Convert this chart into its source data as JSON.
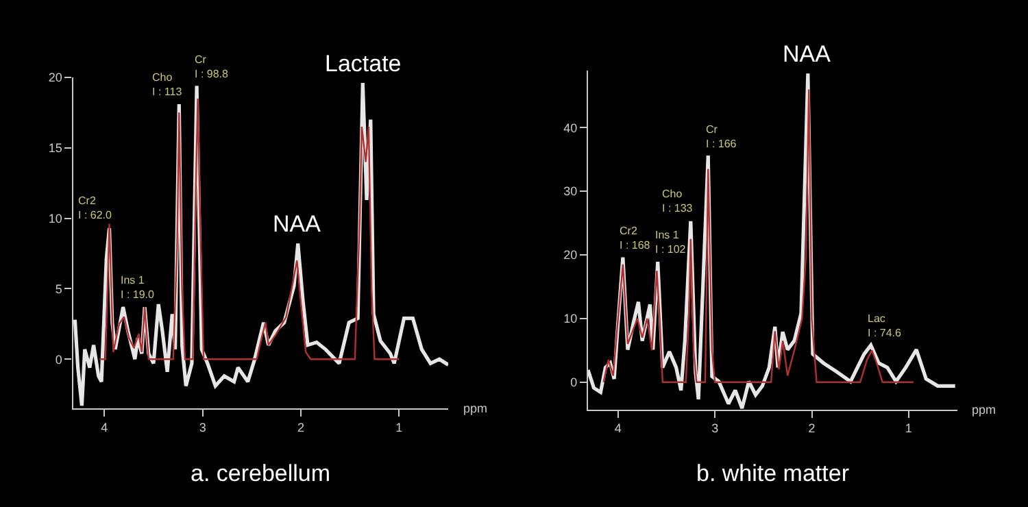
{
  "chart_data": [
    {
      "type": "line",
      "xlabel": "ppm",
      "xlim": [
        4.32,
        0.5
      ],
      "ylim": [
        -3.5,
        20
      ],
      "xticks": [
        4,
        3,
        2,
        1
      ],
      "yticks": [
        0,
        5,
        10,
        15,
        20
      ],
      "grid": false,
      "marker": "none",
      "line_style": "solid",
      "series": [
        {
          "color": "#e6e6e6",
          "x": [
            4.3,
            4.27,
            4.23,
            4.2,
            4.15,
            4.11,
            4.06,
            4.03,
            3.98,
            3.95,
            3.92,
            3.89,
            3.81,
            3.76,
            3.69,
            3.66,
            3.62,
            3.59,
            3.55,
            3.5,
            3.45,
            3.41,
            3.36,
            3.31,
            3.28,
            3.24,
            3.21,
            3.17,
            3.11,
            3.06,
            3.01,
            2.95,
            2.87,
            2.78,
            2.68,
            2.64,
            2.54,
            2.47,
            2.38,
            2.33,
            2.26,
            2.17,
            2.07,
            2.03,
            1.98,
            1.93,
            1.84,
            1.75,
            1.61,
            1.51,
            1.42,
            1.37,
            1.33,
            1.29,
            1.26,
            1.19,
            1.09,
            1.05,
            0.95,
            0.86,
            0.77,
            0.68,
            0.59,
            0.5
          ],
          "values": [
            2.8,
            -0.6,
            -3.3,
            0.7,
            -0.6,
            1.0,
            -1.2,
            -1.6,
            7.1,
            9.3,
            2.6,
            0.7,
            3.7,
            2.0,
            0,
            1.5,
            0.4,
            3.7,
            0.4,
            -0.3,
            3.9,
            2.0,
            -0.9,
            3.2,
            0.7,
            18.1,
            1.0,
            -1.9,
            -0.3,
            19.4,
            0.7,
            -0.3,
            -1.9,
            -1.2,
            -1.6,
            -0.6,
            -1.6,
            0,
            2.6,
            1.0,
            2.0,
            2.6,
            5.2,
            8.2,
            4.2,
            1.0,
            1.2,
            0.7,
            -0.3,
            2.6,
            2.9,
            19.6,
            11.3,
            17.0,
            3.2,
            1.3,
            0.4,
            -0.3,
            2.9,
            2.9,
            0.7,
            -0.3,
            0,
            -0.4
          ]
        },
        {
          "color": "#b03030",
          "x": [
            4.05,
            3.99,
            3.95,
            3.91,
            3.85,
            3.8,
            3.75,
            3.7,
            3.65,
            3.62,
            3.59,
            3.55,
            3.3,
            3.26,
            3.24,
            3.21,
            3.18,
            3.1,
            3.07,
            3.05,
            3.02,
            2.99,
            2.45,
            2.4,
            2.36,
            2.33,
            2.25,
            2.15,
            2.08,
            2.04,
            2.0,
            1.95,
            1.9,
            1.45,
            1.4,
            1.38,
            1.34,
            1.31,
            1.28,
            1.25,
            1.0
          ],
          "values": [
            0,
            0,
            9.6,
            0.5,
            2.5,
            3.0,
            1.5,
            0.8,
            1.8,
            0.5,
            3.7,
            0,
            0,
            8,
            17.5,
            5,
            0,
            0,
            12,
            18.5,
            8,
            0,
            0,
            1.5,
            2.6,
            1,
            1.8,
            3,
            5.5,
            7,
            4,
            0.5,
            0,
            0,
            10,
            16.5,
            14,
            16.5,
            5,
            0,
            0
          ]
        }
      ],
      "annotations": [
        {
          "text": "Cr2\nI : 62.0",
          "x": 3.95,
          "y": 9.3
        },
        {
          "text": "Ins 1\nI : 19.0",
          "x": 3.81,
          "y": 3.7
        },
        {
          "text": "Cho\nI : 113",
          "x": 3.24,
          "y": 18.1
        },
        {
          "text": "Cr\nI : 98.8",
          "x": 3.06,
          "y": 19.4
        },
        {
          "text": "NAA",
          "x": 2.03,
          "y": 8.2
        },
        {
          "text": "Lactate",
          "x": 1.37,
          "y": 19.6
        },
        "a. cerebellum"
      ]
    },
    {
      "type": "line",
      "xlabel": "ppm",
      "xlim": [
        4.31,
        0.5
      ],
      "ylim": [
        -4.3,
        49
      ],
      "xticks": [
        4,
        3,
        2,
        1
      ],
      "yticks": [
        0,
        10,
        20,
        30,
        40
      ],
      "grid": false,
      "marker": "none",
      "line_style": "solid",
      "series": [
        {
          "color": "#e6e6e6",
          "x": [
            4.31,
            4.25,
            4.18,
            4.13,
            4.08,
            4.04,
            4.0,
            3.95,
            3.9,
            3.84,
            3.79,
            3.75,
            3.71,
            3.67,
            3.64,
            3.59,
            3.54,
            3.47,
            3.4,
            3.35,
            3.31,
            3.25,
            3.2,
            3.17,
            3.07,
            3.03,
            2.96,
            2.86,
            2.79,
            2.72,
            2.65,
            2.58,
            2.51,
            2.44,
            2.38,
            2.35,
            2.3,
            2.25,
            2.18,
            2.11,
            2.04,
            1.99,
            1.88,
            1.74,
            1.6,
            1.46,
            1.39,
            1.31,
            1.22,
            1.13,
            1.03,
            0.92,
            0.82,
            0.7,
            0.52
          ],
          "values": [
            1.9,
            -0.9,
            -1.6,
            2.3,
            3.0,
            0.5,
            9.4,
            19.6,
            5.1,
            9.4,
            12.6,
            6.5,
            9.4,
            12.2,
            5.1,
            18.9,
            2.3,
            4.8,
            2.3,
            -1.3,
            6.5,
            25.3,
            1.6,
            -2.7,
            35.6,
            0.9,
            0.1,
            -3.4,
            -1.3,
            -4.1,
            0.1,
            -2.0,
            -0.6,
            2.3,
            8.7,
            2.3,
            7.9,
            5.1,
            6.5,
            10.8,
            48.5,
            4.4,
            3.0,
            1.6,
            0.1,
            4.4,
            5.8,
            3.0,
            2.3,
            0.1,
            2.3,
            5.1,
            0.5,
            -0.6,
            -0.6
          ]
        },
        {
          "color": "#b03030",
          "x": [
            4.15,
            4.1,
            4.05,
            4.0,
            3.95,
            3.9,
            3.85,
            3.8,
            3.75,
            3.7,
            3.65,
            3.6,
            3.57,
            3.54,
            3.3,
            3.27,
            3.25,
            3.22,
            3.19,
            3.1,
            3.07,
            3.03,
            3.0,
            2.42,
            2.38,
            2.34,
            2.3,
            2.25,
            2.18,
            2.1,
            2.06,
            2.03,
            2.0,
            1.95,
            1.5,
            1.43,
            1.38,
            1.33,
            1.27,
            0.95
          ],
          "values": [
            0,
            3.5,
            1,
            10,
            18.5,
            6,
            8,
            10,
            7,
            10,
            5,
            17.5,
            10,
            0,
            0,
            10,
            22.5,
            5,
            0,
            0,
            33.5,
            5,
            0,
            0,
            8,
            2,
            6.5,
            1,
            5,
            10,
            20,
            46,
            10,
            0,
            0,
            3.5,
            5,
            3,
            0,
            0
          ]
        }
      ],
      "annotations": [
        {
          "text": "Cr2\nI : 168",
          "x": 3.95,
          "y": 19.6
        },
        {
          "text": "Ins 1\nI : 102",
          "x": 3.59,
          "y": 18.9
        },
        {
          "text": "Cho\nI : 133",
          "x": 3.25,
          "y": 25.3
        },
        {
          "text": "Cr\nI : 166",
          "x": 3.07,
          "y": 35.6
        },
        {
          "text": "NAA",
          "x": 2.04,
          "y": 48.5
        },
        {
          "text": "Lac\nI : 74.6",
          "x": 1.39,
          "y": 5.8
        },
        "b. white matter"
      ]
    }
  ]
}
